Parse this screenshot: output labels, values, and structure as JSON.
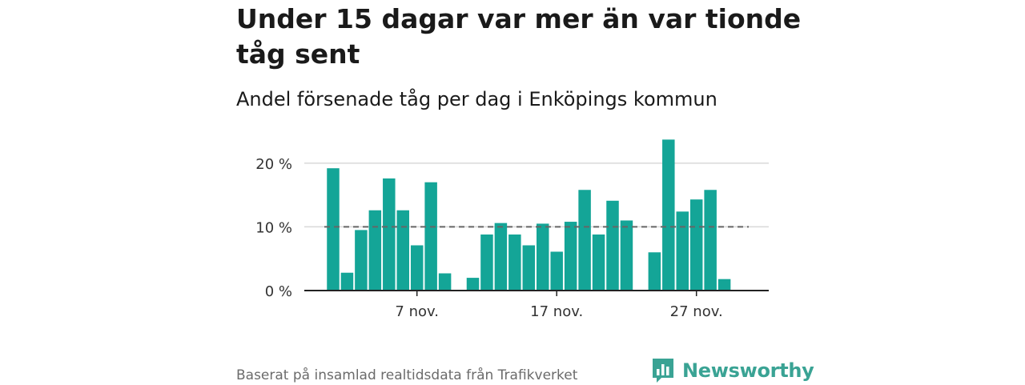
{
  "title": "Under 15 dagar var mer än var tionde tåg sent",
  "subtitle": "Andel försenade tåg per dag i Enköpings kommun",
  "footer": "Baserat på insamlad realtidsdata från Trafikverket",
  "logo": {
    "name": "Newsworthy",
    "icon": "newsworthy-chart-icon",
    "color": "#3aa394"
  },
  "colors": {
    "bar": "#14a597",
    "grid": "#d9d9d9",
    "reference": "#666666",
    "axis": "#222222"
  },
  "chart_data": {
    "type": "bar",
    "x": [
      "1 nov.",
      "2 nov.",
      "3 nov.",
      "4 nov.",
      "5 nov.",
      "6 nov.",
      "7 nov.",
      "8 nov.",
      "9 nov.",
      "10 nov.",
      "11 nov.",
      "12 nov.",
      "13 nov.",
      "14 nov.",
      "15 nov.",
      "16 nov.",
      "17 nov.",
      "18 nov.",
      "19 nov.",
      "20 nov.",
      "21 nov.",
      "22 nov.",
      "23 nov.",
      "24 nov.",
      "25 nov.",
      "26 nov.",
      "27 nov.",
      "28 nov.",
      "29 nov.",
      "30 nov."
    ],
    "values": [
      19.2,
      2.8,
      9.5,
      12.6,
      17.6,
      12.6,
      7.1,
      17.0,
      2.7,
      null,
      2.0,
      8.8,
      10.6,
      8.8,
      7.1,
      10.5,
      6.1,
      10.8,
      15.8,
      8.8,
      14.1,
      11.0,
      null,
      6.0,
      23.7,
      12.4,
      14.3,
      15.8,
      1.8,
      null
    ],
    "reference_line": 10,
    "ylim": [
      0,
      24
    ],
    "yticks": [
      0,
      10,
      20
    ],
    "ytick_labels": [
      "0 %",
      "10 %",
      "20 %"
    ],
    "xtick_labels": [
      "7 nov.",
      "17 nov.",
      "27 nov."
    ],
    "xtick_positions": [
      "7 nov.",
      "17 nov.",
      "27 nov."
    ],
    "grid": true,
    "xlabel": "",
    "ylabel": ""
  }
}
